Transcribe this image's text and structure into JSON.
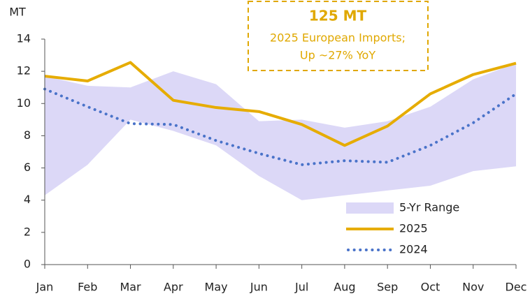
{
  "chart_data": {
    "type": "line",
    "y_label": "MT",
    "annotation": {
      "headline": "125 MT",
      "lines": [
        "2025 European Imports;",
        "Up ~27% YoY"
      ]
    },
    "categories": [
      "Jan",
      "Feb",
      "Mar",
      "Apr",
      "May",
      "Jun",
      "Jul",
      "Aug",
      "Sep",
      "Oct",
      "Nov",
      "Dec"
    ],
    "series": [
      {
        "name": "5-Yr Range",
        "style": "range",
        "color": "#dcd8f7",
        "high": [
          11.7,
          11.1,
          11.0,
          12.0,
          11.2,
          8.9,
          9.0,
          8.5,
          8.9,
          9.8,
          11.5,
          12.5
        ],
        "low": [
          4.3,
          6.2,
          9.0,
          8.3,
          7.4,
          5.5,
          4.0,
          4.3,
          4.6,
          4.9,
          5.8,
          6.1
        ]
      },
      {
        "name": "2025",
        "style": "solid",
        "color": "#E6AC00",
        "values": [
          11.7,
          11.4,
          12.55,
          10.2,
          9.75,
          9.5,
          8.7,
          7.4,
          8.6,
          10.6,
          11.8,
          12.5
        ]
      },
      {
        "name": "2024",
        "style": "dotted",
        "color": "#4A73C9",
        "values": [
          10.9,
          9.8,
          8.75,
          8.7,
          7.7,
          6.9,
          6.2,
          6.45,
          6.35,
          7.4,
          8.8,
          10.6
        ]
      }
    ],
    "ylim": [
      0,
      14
    ],
    "yticks": [
      0,
      2,
      4,
      6,
      8,
      10,
      12,
      14
    ],
    "grid": false,
    "legend": "lower right"
  }
}
